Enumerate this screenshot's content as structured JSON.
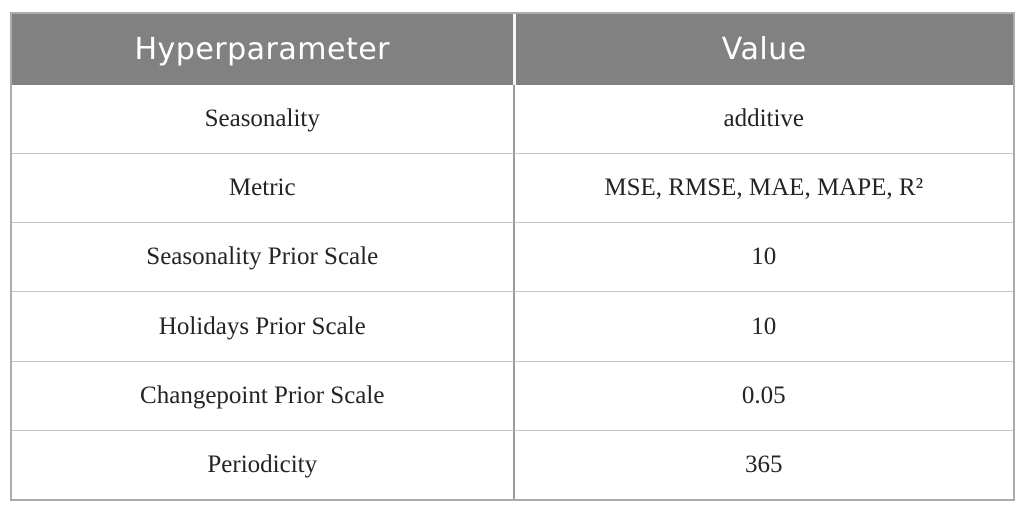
{
  "table": {
    "columns": {
      "hyperparameter": "Hyperparameter",
      "value": "Value"
    },
    "rows": [
      {
        "hyperparameter": "Seasonality",
        "value": "additive"
      },
      {
        "hyperparameter": "Metric",
        "value": "MSE, RMSE, MAE, MAPE, R²"
      },
      {
        "hyperparameter": "Seasonality Prior Scale",
        "value": "10"
      },
      {
        "hyperparameter": "Holidays Prior Scale",
        "value": "10"
      },
      {
        "hyperparameter": "Changepoint Prior Scale",
        "value": "0.05"
      },
      {
        "hyperparameter": "Periodicity",
        "value": "365"
      }
    ],
    "colors": {
      "header_background": "#818181",
      "header_text": "#ffffff",
      "body_text": "#242424",
      "outer_border": "#ababab",
      "row_divider": "#c6c6c6",
      "column_divider": "#9b9b9b",
      "header_gap": "#f7f7f7"
    }
  }
}
